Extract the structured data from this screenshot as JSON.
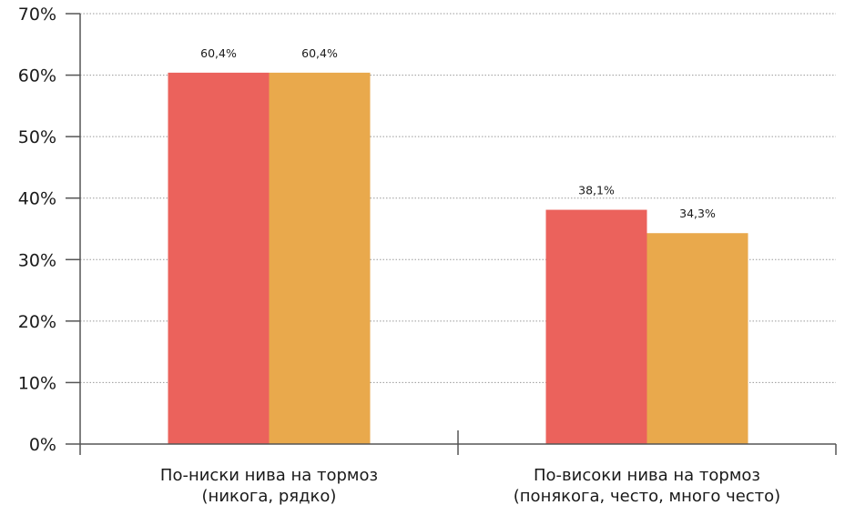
{
  "chart_data": {
    "type": "bar",
    "title": "",
    "xlabel": "",
    "ylabel": "",
    "ylim": [
      0,
      70
    ],
    "y_tick_labels": [
      "0%",
      "10%",
      "20%",
      "30%",
      "40%",
      "50%",
      "60%",
      "70%"
    ],
    "grid": "horizontal dotted",
    "legend": "none",
    "categories": [
      [
        "По-ниски нива на тормоз",
        "(никога, рядко)"
      ],
      [
        "По-високи нива на тормоз",
        "(понякога, често, много често)"
      ]
    ],
    "series": [
      {
        "values": [
          60.4,
          38.1
        ],
        "labels": [
          "60,4%",
          "38,1%"
        ],
        "color": "#EB625C"
      },
      {
        "values": [
          60.4,
          34.3
        ],
        "labels": [
          "60,4%",
          "34,3%"
        ],
        "color": "#E9A94C"
      }
    ]
  }
}
